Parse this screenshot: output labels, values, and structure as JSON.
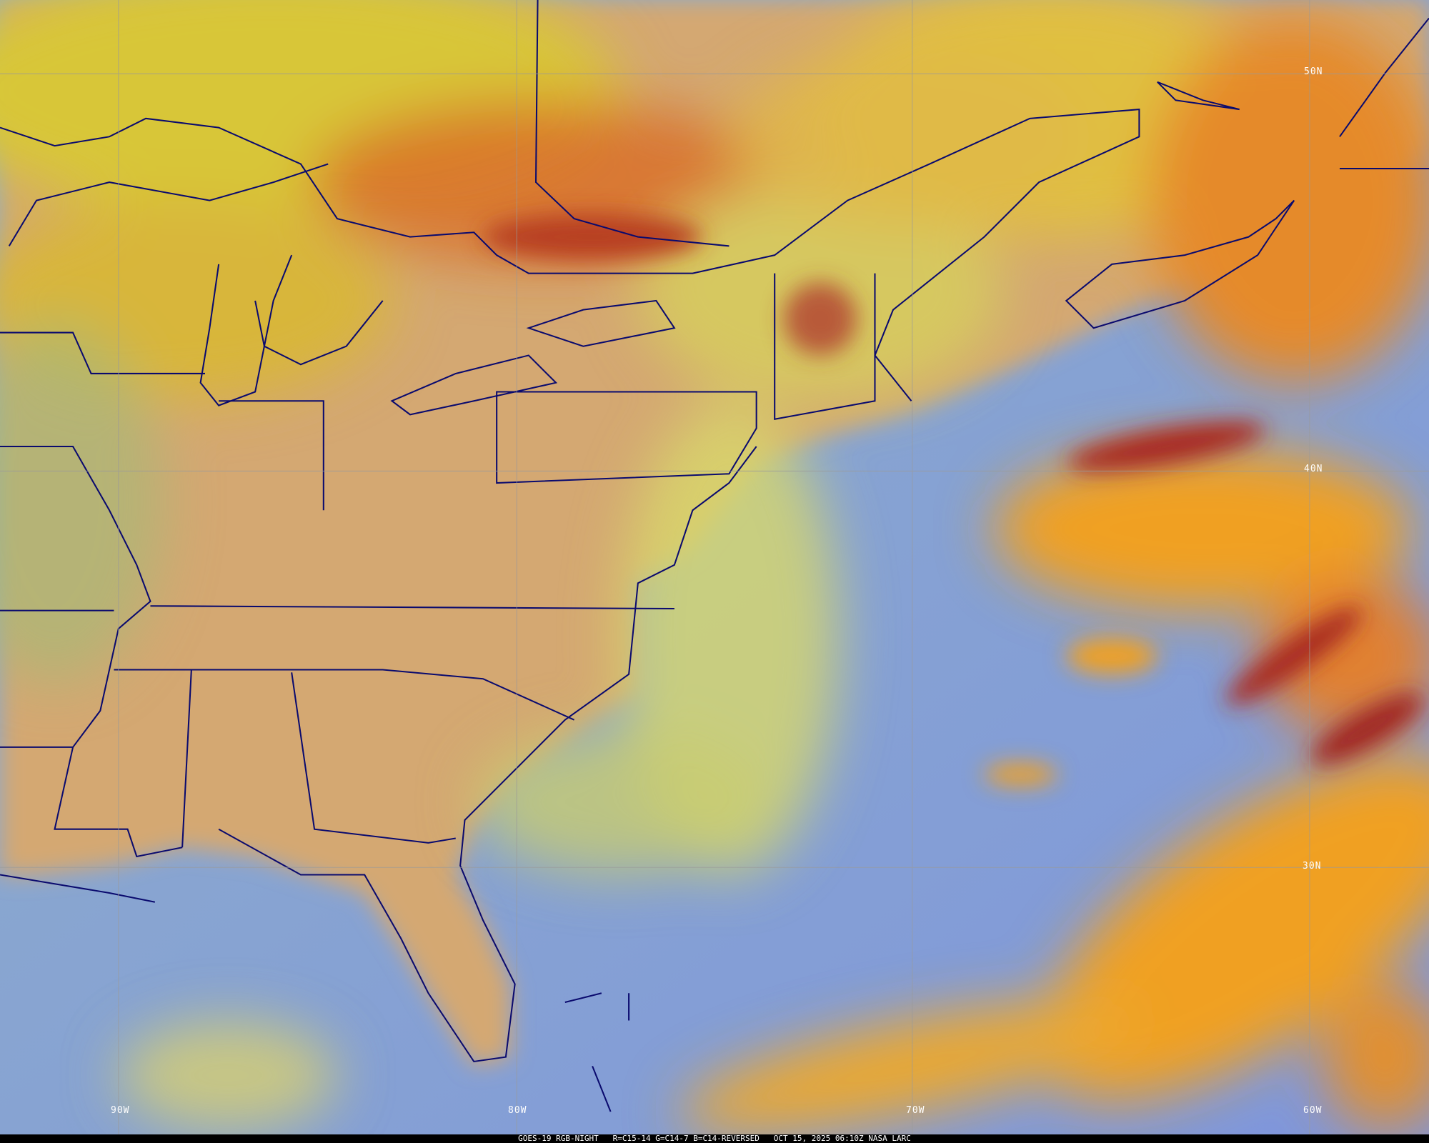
{
  "caption": {
    "satellite": "GOES-19 RGB-NIGHT",
    "recipe": "R=C15-14 G=C14-7 B=C14-REVERSED",
    "timestamp": "OCT 15, 2025 06:10Z NASA LARC"
  },
  "grid": {
    "latitudes": [
      "50N",
      "40N",
      "30N"
    ],
    "longitudes": [
      "90W",
      "80W",
      "70W",
      "60W"
    ]
  },
  "colors": {
    "ocean": "#7f9ed6",
    "land": "#d6aa74",
    "cloud_low": "#d8d24a",
    "cloud_mid": "#f2a626",
    "cloud_high": "#a82c22",
    "boundaries": "#0a0a6e",
    "grid": "#9a9a9a"
  }
}
